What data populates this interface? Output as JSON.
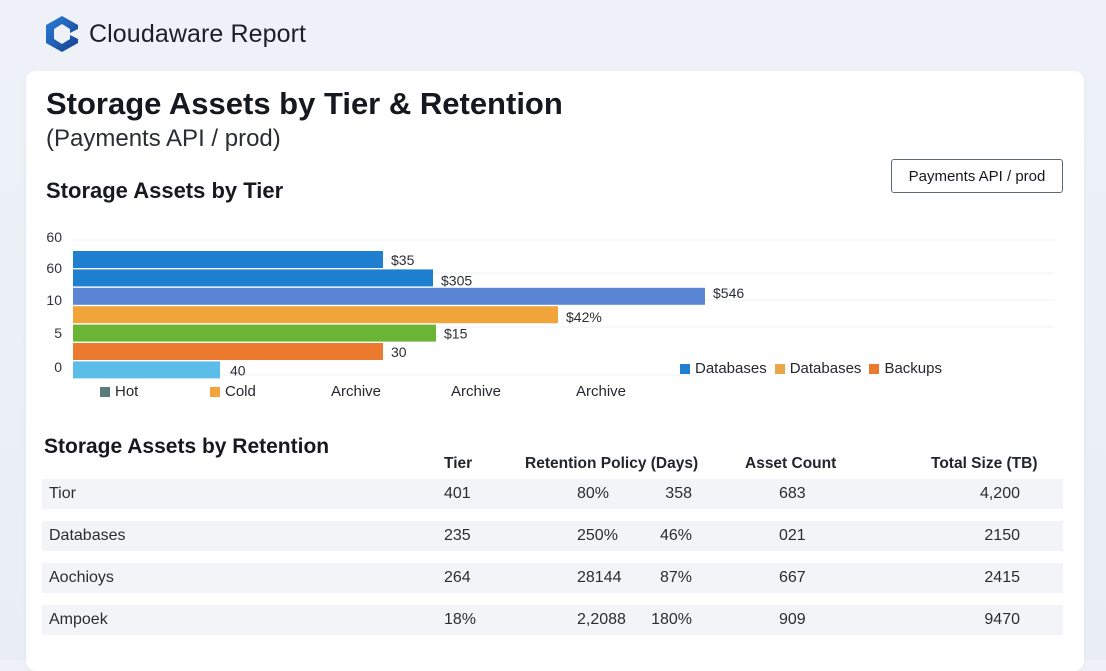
{
  "app": {
    "brand": "Cloudaware Report",
    "logo_icon": "cloudaware-hexagon-logo-icon",
    "accent_color": "#1f5fb3"
  },
  "report": {
    "title": "Storage Assets by Tier & Retention",
    "subtitle": "(Payments API / prod)",
    "context_button": "Payments API / prod"
  },
  "chart_section": {
    "title": "Storage Assets by Tier"
  },
  "chart_data": {
    "type": "bar",
    "orientation": "horizontal",
    "title": "Storage Assets by Tier",
    "y_tick_labels": [
      "60",
      "60",
      "10",
      "5",
      "0"
    ],
    "x_tick_labels": [
      "Archive",
      "Archive",
      "Archive"
    ],
    "grid": true,
    "xlim": [
      0,
      600
    ],
    "bars": [
      {
        "label": "$35",
        "value": 310,
        "color": "#1f7fd0"
      },
      {
        "label": "$305",
        "value": 360,
        "color": "#1f7fd0"
      },
      {
        "label": "$546",
        "value": 632,
        "color": "#5b86d6"
      },
      {
        "label": "$42%",
        "value": 485,
        "color": "#f0a43a"
      },
      {
        "label": "$15",
        "value": 363,
        "color": "#6ab535"
      },
      {
        "label": "30",
        "value": 310,
        "color": "#ec7a2e"
      },
      {
        "label": "40",
        "value": 147,
        "color": "#5bbde8"
      }
    ],
    "legend_bottom": [
      {
        "name": "Hot",
        "color": "#5b7c7a"
      },
      {
        "name": "Cold",
        "color": "#f0a43a"
      }
    ],
    "legend_top": [
      {
        "name": "Databases",
        "color": "#1f7fd0"
      },
      {
        "name": "Databases",
        "color": "#e8a84a"
      },
      {
        "name": "Backups",
        "color": "#ec7a2e"
      }
    ],
    "legend_placement": "bottom-right"
  },
  "table": {
    "title": "Storage Assets by Retention",
    "headers": [
      "Tier",
      "Retention Policy (Days)",
      "Asset Count",
      "Total Size (TB)"
    ],
    "rows": [
      {
        "name": "Tior",
        "c1": "401",
        "c2": "80%",
        "c3": "358",
        "c4": "683",
        "c5": "4,200"
      },
      {
        "name": "Databases",
        "c1": "235",
        "c2": "250%",
        "c3": "46%",
        "c4": "021",
        "c5": "2150"
      },
      {
        "name": "Aochioys",
        "c1": "264",
        "c2": "28144",
        "c3": "87%",
        "c4": "667",
        "c5": "2415"
      },
      {
        "name": "Ampoek",
        "c1": "18%",
        "c2": "2,2088",
        "c3": "180%",
        "c4": "909",
        "c5": "9470"
      }
    ]
  }
}
